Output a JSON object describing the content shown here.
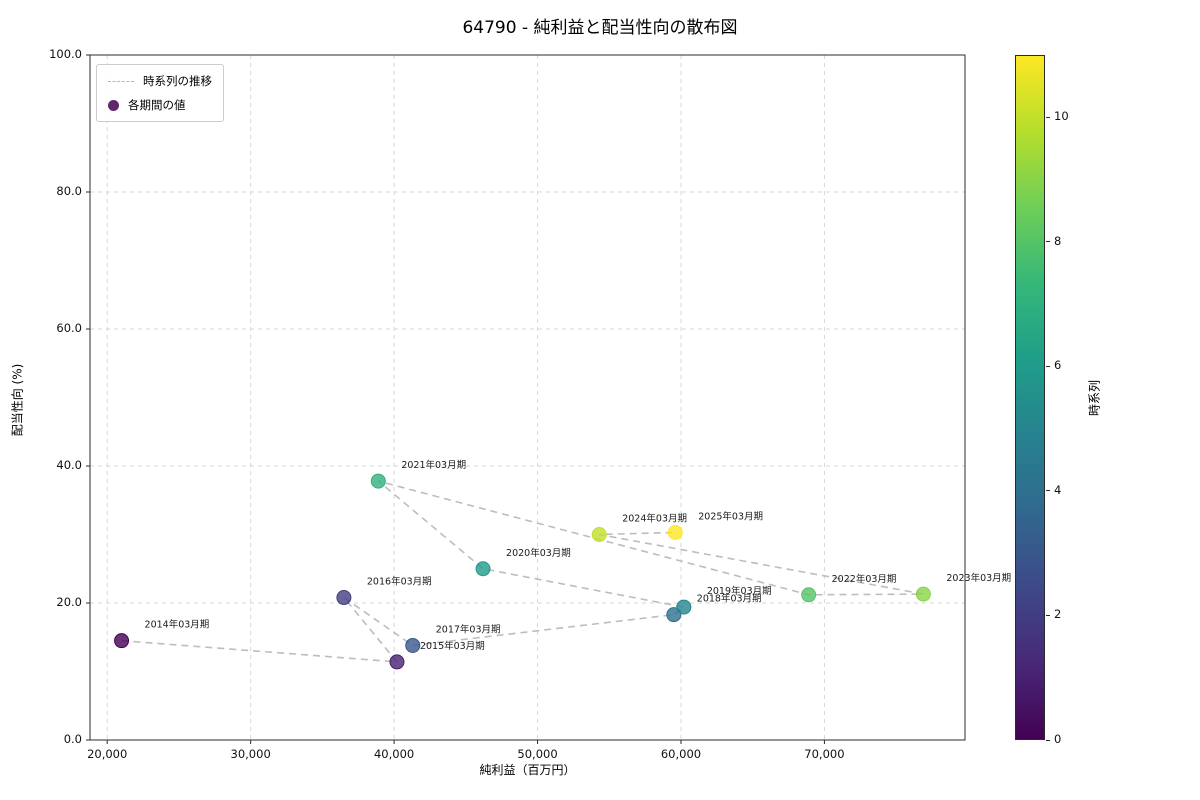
{
  "title": "64790 - 純利益と配当性向の散布図",
  "chart_data": {
    "type": "scatter",
    "title": "64790 - 純利益と配当性向の散布図",
    "xlabel": "純利益（百万円）",
    "ylabel": "配当性向 (%)",
    "xlim": [
      18800,
      79800
    ],
    "ylim": [
      0,
      100
    ],
    "xticks": [
      20000,
      30000,
      40000,
      50000,
      60000,
      70000
    ],
    "xtick_labels": [
      "20,000",
      "30,000",
      "40,000",
      "50,000",
      "60,000",
      "70,000"
    ],
    "yticks": [
      0,
      20,
      40,
      60,
      80,
      100
    ],
    "ytick_labels": [
      "0.0",
      "20.0",
      "40.0",
      "60.0",
      "80.0",
      "100.0"
    ],
    "grid": true,
    "legend": {
      "position": "upper-left",
      "items": [
        {
          "label": "時系列の推移",
          "marker": "dashed-line",
          "color": "#b5b5b5"
        },
        {
          "label": "各期間の値",
          "marker": "circle",
          "color": "#440154"
        }
      ]
    },
    "colorbar": {
      "label": "時系列",
      "min": 0,
      "max": 11,
      "ticks": [
        0,
        2,
        4,
        6,
        8,
        10
      ],
      "gradient": [
        "#440154",
        "#482878",
        "#3e4989",
        "#31688e",
        "#26828e",
        "#1f9e89",
        "#35b779",
        "#6ece58",
        "#b5de2b",
        "#fde725"
      ]
    },
    "points": [
      {
        "period": "2014年03月期",
        "x": 21000,
        "y": 14.5,
        "t": 0,
        "color": "#440154"
      },
      {
        "period": "2015年03月期",
        "x": 40200,
        "y": 11.4,
        "t": 1,
        "color": "#472171"
      },
      {
        "period": "2016年03月期",
        "x": 36500,
        "y": 20.8,
        "t": 2,
        "color": "#423d83"
      },
      {
        "period": "2017年03月期",
        "x": 41300,
        "y": 13.8,
        "t": 3,
        "color": "#38578b"
      },
      {
        "period": "2018年03月期",
        "x": 59500,
        "y": 18.3,
        "t": 4,
        "color": "#2e6f8e"
      },
      {
        "period": "2019年03月期",
        "x": 60200,
        "y": 19.4,
        "t": 5,
        "color": "#25858e"
      },
      {
        "period": "2020年03月期",
        "x": 46200,
        "y": 25.0,
        "t": 6,
        "color": "#209b8a"
      },
      {
        "period": "2021年03月期",
        "x": 38900,
        "y": 37.8,
        "t": 7,
        "color": "#2fb07d"
      },
      {
        "period": "2022年03月期",
        "x": 68900,
        "y": 21.2,
        "t": 8,
        "color": "#54c367"
      },
      {
        "period": "2023年03月期",
        "x": 76900,
        "y": 21.3,
        "t": 9,
        "color": "#88d448"
      },
      {
        "period": "2024年03月期",
        "x": 54300,
        "y": 30.0,
        "t": 10,
        "color": "#c2e02a"
      },
      {
        "period": "2025年03月期",
        "x": 59600,
        "y": 30.3,
        "t": 11,
        "color": "#fde725"
      }
    ]
  }
}
